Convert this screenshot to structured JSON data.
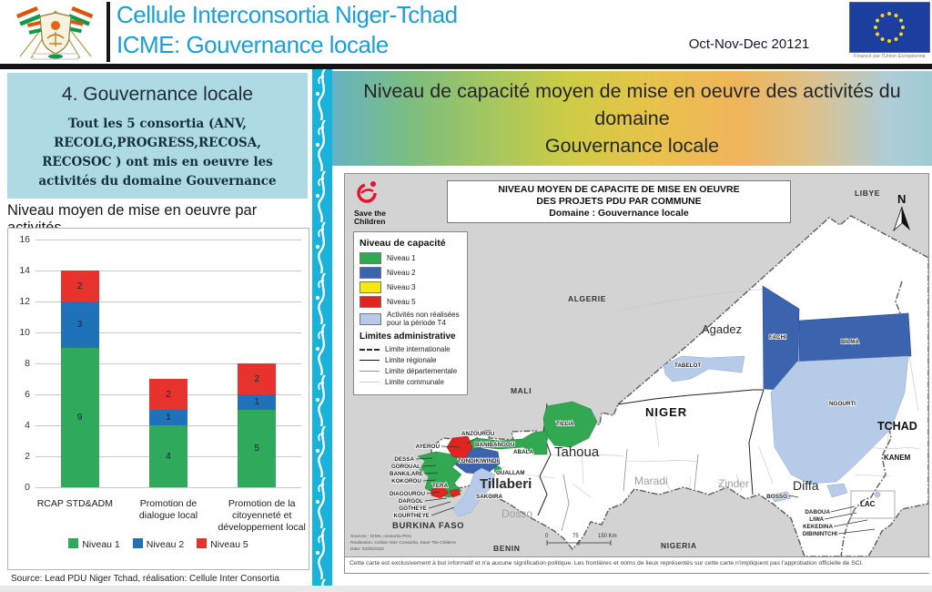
{
  "header": {
    "title_line1": "Cellule Interconsortia Niger-Tchad",
    "title_line2": "ICME: Gouvernance locale",
    "period": "Oct-Nov-Dec  20121",
    "eu_caption": "Financé par l'Union Européenne",
    "accent_color": "#1b9fd8"
  },
  "left_panel": {
    "box_title": "4. Gouvernance locale",
    "box_text": "Tout les 5 consortia  (ANV, RECOLG,PROGRESS,RECOSA, RECOSOC ) ont mis en oeuvre les activités du domaine Gouvernance",
    "chart_title": "Niveau moyen de mise en oeuvre par activités",
    "source": "Source: Lead PDU Niger Tchad,  réalisation: Cellule Inter Consortia"
  },
  "chart_data": {
    "type": "bar",
    "stacked": true,
    "title": "Niveau moyen de mise en oeuvre par activités",
    "categories": [
      "RCAP STD&ADM",
      "Promotion de dialogue local",
      "Promotion de la citoyenneté et développement local"
    ],
    "series": [
      {
        "name": "Niveau 1",
        "color": "#2fa95c",
        "values": [
          9,
          4,
          5
        ]
      },
      {
        "name": "Niveau 2",
        "color": "#1f72b8",
        "values": [
          3,
          1,
          1
        ]
      },
      {
        "name": "Niveau 5",
        "color": "#e7322e",
        "values": [
          2,
          2,
          2
        ]
      }
    ],
    "ylim": [
      0,
      16
    ],
    "ytick_step": 2,
    "grid": true,
    "legend_position": "bottom"
  },
  "banner": {
    "line1": "Niveau de capacité moyen de mise en oeuvre des activités du domaine",
    "line2": "Gouvernance locale"
  },
  "map": {
    "title_line1": "NIVEAU MOYEN DE CAPACITE DE MISE EN OEUVRE",
    "title_line2": "DES PROJETS PDU PAR COMMUNE",
    "title_line3": "Domaine : Gouvernance locale",
    "logo_line1": "Save the",
    "logo_line2": "Children",
    "legend": {
      "capacity_title": "Niveau de capacité",
      "items": [
        {
          "label": "Niveau 1",
          "color": "#33a853"
        },
        {
          "label": "Niveau 2",
          "color": "#3b63ae"
        },
        {
          "label": "Niveau 3",
          "color": "#f5e718"
        },
        {
          "label": "Niveau 5",
          "color": "#e0241f"
        },
        {
          "label": "Activités non réalisées pour la période T4",
          "color": "#b5cbe8"
        }
      ],
      "limits_title": "Limites administrative",
      "limits": [
        {
          "label": "Limite internationale"
        },
        {
          "label": "Limite régionale"
        },
        {
          "label": "Limite départementale"
        },
        {
          "label": "Limite communale"
        }
      ]
    },
    "labels": {
      "algerie": "ALGERIE",
      "libye": "LIBYE",
      "mali": "MALI",
      "burkina": "BURKINA FASO",
      "benin": "BENIN",
      "nigeria": "NIGERIA",
      "tchad": "TCHAD",
      "niger": "NIGER",
      "kanem": "KANEM",
      "lac": "LAC",
      "agadez": "Agadez",
      "tahoua": "Tahoua",
      "tillaberi": "Tillaberi",
      "dosso": "Dosso",
      "maradi": "Maradi",
      "zinder": "Zinder",
      "diffa": "Diffa",
      "fachi": "FACHI",
      "bilma": "BILMA",
      "tabelot": "TABELOT",
      "ngourti": "NGOURTI",
      "tillia": "TILLIA",
      "banibangou": "BANIBANGOU",
      "abala": "ABALA",
      "tondikiwindi": "TONDIKIWINDI",
      "anzourou": "ANZOUROU",
      "ayerou": "AYEROU",
      "dessa": "DESSA",
      "goroual": "GOROUAL",
      "bankilare": "BANKILARE",
      "kokorou": "KOKOROU",
      "tera": "TERA",
      "diagourou": "DIAGOUROU",
      "dargol": "DARGOL",
      "gotheye": "GOTHEYE",
      "kourtheye": "KOURTHEYE",
      "ouallam": "OUALLAM",
      "sakoira": "SAKOIRA",
      "bosso": "BOSSO",
      "daboua": "DABOUA",
      "liwa": "LIWA",
      "kekedina": "KEKEDINA",
      "dibinintchi": "DIBININTCHI",
      "north": "N"
    },
    "scale": {
      "t0": "0",
      "t1": "75",
      "t2": "150 Km"
    },
    "sources_line1": "Sources : IGNN, consortia PDU",
    "sources_line2": "Réalisation: Cellule Inter Consortia, Save The Children",
    "sources_line3": "Date: 02/05/2022",
    "disclaimer": "Cette carte est exclusivement à but informatif et n'a aucune signification politique. Les frontières et noms de lieux représentés sur cette carte n'impliquent pas l'approbation officielle de SCI."
  }
}
